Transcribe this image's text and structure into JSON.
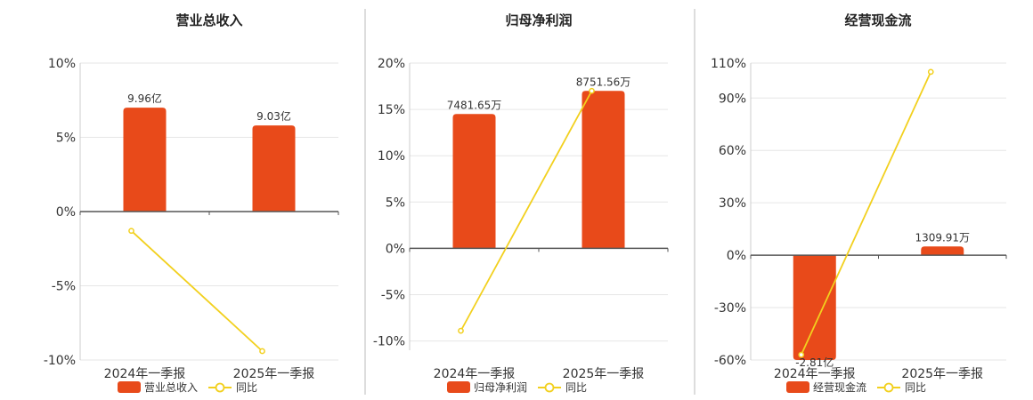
{
  "colors": {
    "bar": "#E84A1A",
    "line": "#F2D01E",
    "axis": "#555555",
    "grid": "#e6e6e6",
    "divider": "#bbbbbb"
  },
  "chart_data": [
    {
      "type": "bar",
      "title": "营业总收入",
      "categories": [
        "2024年一季报",
        "2025年一季报"
      ],
      "ylim": [
        -10,
        10
      ],
      "yticks": [
        10,
        5,
        0,
        -5,
        -10
      ],
      "ytick_labels": [
        "10%",
        "5%",
        "0%",
        "-5%",
        "-10%"
      ],
      "grid": true,
      "legend": "bottom",
      "series": [
        {
          "name": "营业总收入",
          "kind": "bar",
          "values": [
            7.0,
            5.8
          ],
          "labels": [
            "9.96亿",
            "9.03亿"
          ]
        },
        {
          "name": "同比",
          "kind": "line",
          "values": [
            -1.3,
            -9.4
          ]
        }
      ]
    },
    {
      "type": "bar",
      "title": "归母净利润",
      "categories": [
        "2024年一季报",
        "2025年一季报"
      ],
      "ylim": [
        -11,
        20
      ],
      "yticks": [
        20,
        15,
        10,
        5,
        0,
        -5,
        -10
      ],
      "ytick_labels": [
        "20%",
        "15%",
        "10%",
        "5%",
        "0%",
        "-5%",
        "-10%"
      ],
      "grid": true,
      "legend": "bottom",
      "series": [
        {
          "name": "归母净利润",
          "kind": "bar",
          "values": [
            14.5,
            17.0
          ],
          "labels": [
            "7481.65万",
            "8751.56万"
          ]
        },
        {
          "name": "同比",
          "kind": "line",
          "values": [
            -8.9,
            17.0
          ]
        }
      ]
    },
    {
      "type": "bar",
      "title": "经营现金流",
      "categories": [
        "2024年一季报",
        "2025年一季报"
      ],
      "ylim": [
        -60,
        110
      ],
      "yticks": [
        110,
        90,
        60,
        30,
        0,
        -30,
        -60
      ],
      "ytick_labels": [
        "110%",
        "90%",
        "60%",
        "30%",
        "0%",
        "-30%",
        "-60%"
      ],
      "grid": true,
      "legend": "bottom",
      "series": [
        {
          "name": "经营现金流",
          "kind": "bar",
          "values": [
            -60,
            5
          ],
          "labels": [
            "-2.81亿",
            "1309.91万"
          ]
        },
        {
          "name": "同比",
          "kind": "line",
          "values": [
            -57,
            105
          ]
        }
      ]
    }
  ]
}
